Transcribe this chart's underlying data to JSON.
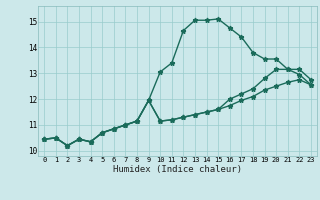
{
  "xlabel": "Humidex (Indice chaleur)",
  "ylabel": "",
  "bg_color": "#cce8ea",
  "grid_color": "#99cccc",
  "line_color": "#1a6b5a",
  "xlim": [
    -0.5,
    23.5
  ],
  "ylim": [
    9.8,
    15.6
  ],
  "xticks": [
    0,
    1,
    2,
    3,
    4,
    5,
    6,
    7,
    8,
    9,
    10,
    11,
    12,
    13,
    14,
    15,
    16,
    17,
    18,
    19,
    20,
    21,
    22,
    23
  ],
  "yticks": [
    10,
    11,
    12,
    13,
    14,
    15
  ],
  "line1_x": [
    0,
    1,
    2,
    3,
    4,
    5,
    6,
    7,
    8,
    9,
    10,
    11,
    12,
    13,
    14,
    15,
    16,
    17,
    18,
    19,
    20,
    21,
    22,
    23
  ],
  "line1_y": [
    10.45,
    10.5,
    10.2,
    10.45,
    10.35,
    10.7,
    10.85,
    11.0,
    11.15,
    11.95,
    13.05,
    13.4,
    14.65,
    15.05,
    15.05,
    15.1,
    14.75,
    14.4,
    13.8,
    13.55,
    13.55,
    13.15,
    13.15,
    12.75
  ],
  "line2_x": [
    0,
    1,
    2,
    3,
    4,
    5,
    6,
    7,
    8,
    9,
    10,
    11,
    12,
    13,
    14,
    15,
    16,
    17,
    18,
    19,
    20,
    21,
    22,
    23
  ],
  "line2_y": [
    10.45,
    10.5,
    10.2,
    10.45,
    10.35,
    10.7,
    10.85,
    11.0,
    11.15,
    11.95,
    11.15,
    11.2,
    11.3,
    11.4,
    11.5,
    11.6,
    11.75,
    11.95,
    12.1,
    12.35,
    12.5,
    12.65,
    12.75,
    12.55
  ],
  "line3_x": [
    0,
    1,
    2,
    3,
    4,
    5,
    6,
    7,
    8,
    9,
    10,
    11,
    12,
    13,
    14,
    15,
    16,
    17,
    18,
    19,
    20,
    21,
    22,
    23
  ],
  "line3_y": [
    10.45,
    10.5,
    10.2,
    10.45,
    10.35,
    10.7,
    10.85,
    11.0,
    11.15,
    11.95,
    11.15,
    11.2,
    11.3,
    11.4,
    11.5,
    11.6,
    12.0,
    12.2,
    12.4,
    12.8,
    13.15,
    13.15,
    12.95,
    12.55
  ],
  "marker_size": 3.5,
  "line_width": 1.0
}
